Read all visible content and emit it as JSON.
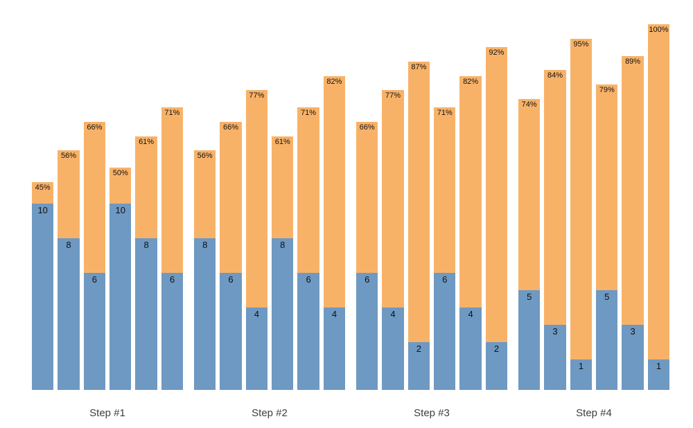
{
  "chart_data": {
    "type": "bar",
    "variant": "grouped-stacked-progress-bars",
    "title": "",
    "xlabel": "",
    "ylabel": "",
    "grid": false,
    "axes_visible": false,
    "legend": null,
    "categories": [
      "Step #1",
      "Step #2",
      "Step #3",
      "Step #4"
    ],
    "colors": {
      "top_segment": "#f8b268",
      "bottom_segment": "#6e99c2",
      "value_text": "#111111",
      "group_label_text": "#3d3d3d",
      "background": "#ffffff"
    },
    "groups": [
      {
        "label": "Step #1",
        "bars": [
          {
            "percent": 45,
            "percent_label": "45%",
            "count": 10,
            "count_label": "10"
          },
          {
            "percent": 56,
            "percent_label": "56%",
            "count": 8,
            "count_label": "8"
          },
          {
            "percent": 66,
            "percent_label": "66%",
            "count": 6,
            "count_label": "6"
          },
          {
            "percent": 50,
            "percent_label": "50%",
            "count": 10,
            "count_label": "10"
          },
          {
            "percent": 61,
            "percent_label": "61%",
            "count": 8,
            "count_label": "8"
          },
          {
            "percent": 71,
            "percent_label": "71%",
            "count": 6,
            "count_label": "6"
          }
        ]
      },
      {
        "label": "Step #2",
        "bars": [
          {
            "percent": 56,
            "percent_label": "56%",
            "count": 8,
            "count_label": "8"
          },
          {
            "percent": 66,
            "percent_label": "66%",
            "count": 6,
            "count_label": "6"
          },
          {
            "percent": 77,
            "percent_label": "77%",
            "count": 4,
            "count_label": "4"
          },
          {
            "percent": 61,
            "percent_label": "61%",
            "count": 8,
            "count_label": "8"
          },
          {
            "percent": 71,
            "percent_label": "71%",
            "count": 6,
            "count_label": "6"
          },
          {
            "percent": 82,
            "percent_label": "82%",
            "count": 4,
            "count_label": "4"
          }
        ]
      },
      {
        "label": "Step #3",
        "bars": [
          {
            "percent": 66,
            "percent_label": "66%",
            "count": 6,
            "count_label": "6"
          },
          {
            "percent": 77,
            "percent_label": "77%",
            "count": 4,
            "count_label": "4"
          },
          {
            "percent": 87,
            "percent_label": "87%",
            "count": 2,
            "count_label": "2"
          },
          {
            "percent": 71,
            "percent_label": "71%",
            "count": 6,
            "count_label": "6"
          },
          {
            "percent": 82,
            "percent_label": "82%",
            "count": 4,
            "count_label": "4"
          },
          {
            "percent": 92,
            "percent_label": "92%",
            "count": 2,
            "count_label": "2"
          }
        ]
      },
      {
        "label": "Step #4",
        "bars": [
          {
            "percent": 74,
            "percent_label": "74%",
            "count": 5,
            "count_label": "5"
          },
          {
            "percent": 84,
            "percent_label": "84%",
            "count": 3,
            "count_label": "3"
          },
          {
            "percent": 95,
            "percent_label": "95%",
            "count": 1,
            "count_label": "1"
          },
          {
            "percent": 79,
            "percent_label": "79%",
            "count": 5,
            "count_label": "5"
          },
          {
            "percent": 89,
            "percent_label": "89%",
            "count": 3,
            "count_label": "3"
          },
          {
            "percent": 100,
            "percent_label": "100%",
            "count": 1,
            "count_label": "1"
          }
        ]
      }
    ]
  }
}
